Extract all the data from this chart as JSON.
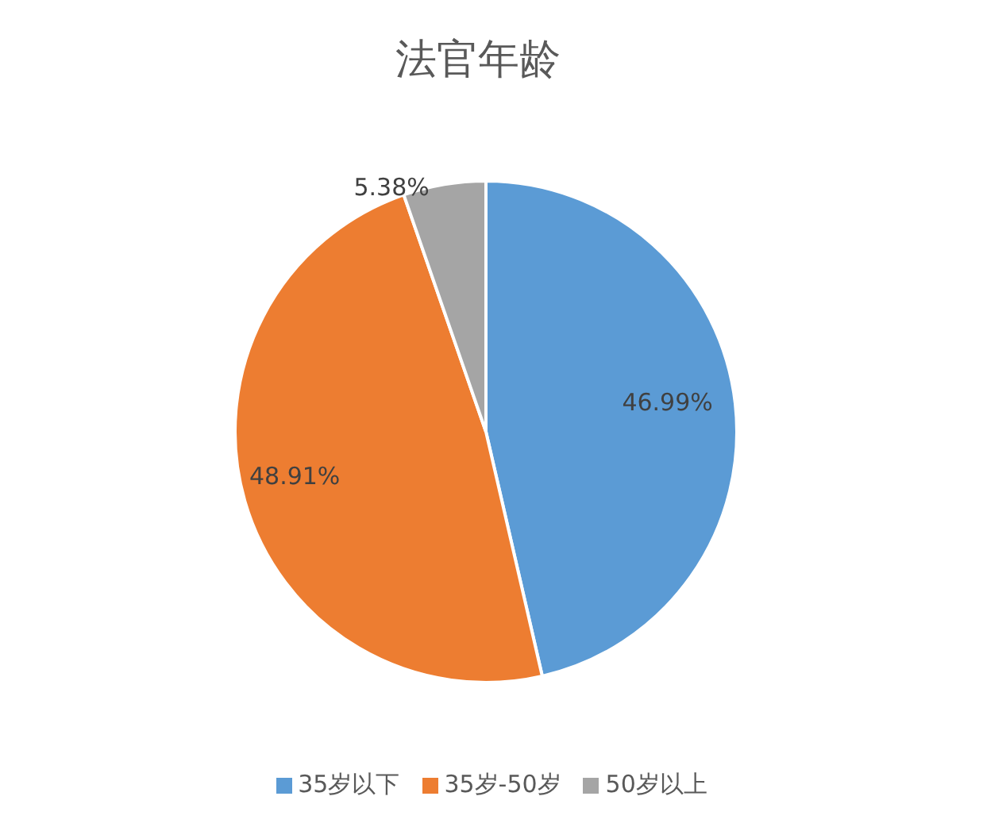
{
  "chart_data": {
    "type": "pie",
    "title": "法官年龄",
    "categories": [
      "35岁以下",
      "35岁-50岁",
      "50岁以上"
    ],
    "values": [
      46.99,
      48.91,
      5.38
    ],
    "value_labels": [
      "46.99%",
      "48.91%",
      "5.38%"
    ],
    "colors": [
      "#5b9bd5",
      "#ed7d31",
      "#a5a5a5"
    ],
    "legend": "bottom"
  }
}
